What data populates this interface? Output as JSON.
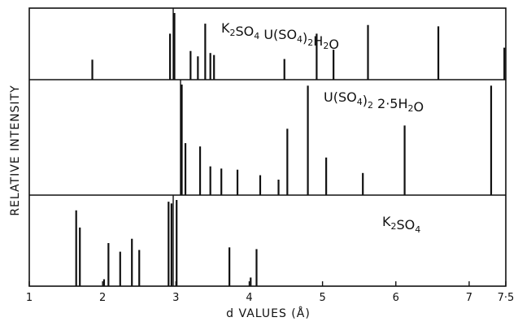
{
  "chart_data": {
    "type": "bar",
    "xlabel": "d VALUES (Å)",
    "ylabel": "RELATIVE INTENSITY",
    "xlim": [
      1,
      7.5
    ],
    "xticks": [
      {
        "value": 1,
        "label": "1"
      },
      {
        "value": 2,
        "label": "2"
      },
      {
        "value": 3,
        "label": "3"
      },
      {
        "value": 4,
        "label": "4"
      },
      {
        "value": 5,
        "label": "5"
      },
      {
        "value": 6,
        "label": "6"
      },
      {
        "value": 7,
        "label": "7"
      },
      {
        "value": 7.5,
        "label": "7·5"
      }
    ],
    "grid": false,
    "panels": [
      {
        "label_parts": [
          {
            "text": "K",
            "sub": false
          },
          {
            "text": "2",
            "sub": true
          },
          {
            "text": "SO",
            "sub": false
          },
          {
            "text": "4",
            "sub": true
          },
          {
            "text": " U(SO",
            "sub": false
          },
          {
            "text": "4",
            "sub": true
          },
          {
            "text": ")",
            "sub": false
          },
          {
            "text": "2",
            "sub": true
          },
          {
            "text": "H",
            "sub": false
          },
          {
            "text": "2",
            "sub": true
          },
          {
            "text": "O",
            "sub": false
          }
        ],
        "peaks": [
          {
            "d": 1.86,
            "intensity": 0.3
          },
          {
            "d": 2.92,
            "intensity": 0.69
          },
          {
            "d": 2.98,
            "intensity": 1.0
          },
          {
            "d": 3.2,
            "intensity": 0.43
          },
          {
            "d": 3.3,
            "intensity": 0.35
          },
          {
            "d": 3.4,
            "intensity": 0.84
          },
          {
            "d": 3.47,
            "intensity": 0.4
          },
          {
            "d": 3.52,
            "intensity": 0.37
          },
          {
            "d": 4.48,
            "intensity": 0.31
          },
          {
            "d": 4.92,
            "intensity": 0.69
          },
          {
            "d": 5.15,
            "intensity": 0.45
          },
          {
            "d": 5.62,
            "intensity": 0.82
          },
          {
            "d": 6.58,
            "intensity": 0.8
          },
          {
            "d": 7.48,
            "intensity": 0.48
          }
        ]
      },
      {
        "label_parts": [
          {
            "text": "U(SO",
            "sub": false
          },
          {
            "text": "4",
            "sub": true
          },
          {
            "text": ")",
            "sub": false
          },
          {
            "text": "2",
            "sub": true
          },
          {
            "text": " 2·5H",
            "sub": false
          },
          {
            "text": "2",
            "sub": true
          },
          {
            "text": "O",
            "sub": false
          }
        ],
        "peaks": [
          {
            "d": 3.08,
            "intensity": 1.0
          },
          {
            "d": 3.13,
            "intensity": 0.47
          },
          {
            "d": 3.33,
            "intensity": 0.44
          },
          {
            "d": 3.47,
            "intensity": 0.26
          },
          {
            "d": 3.62,
            "intensity": 0.24
          },
          {
            "d": 3.84,
            "intensity": 0.23
          },
          {
            "d": 4.15,
            "intensity": 0.18
          },
          {
            "d": 4.4,
            "intensity": 0.14
          },
          {
            "d": 4.52,
            "intensity": 0.6
          },
          {
            "d": 4.8,
            "intensity": 0.99
          },
          {
            "d": 5.05,
            "intensity": 0.34
          },
          {
            "d": 5.55,
            "intensity": 0.2
          },
          {
            "d": 6.12,
            "intensity": 0.63
          },
          {
            "d": 7.3,
            "intensity": 0.99
          }
        ]
      },
      {
        "label_parts": [
          {
            "text": "K",
            "sub": false
          },
          {
            "text": "2",
            "sub": true
          },
          {
            "text": "SO",
            "sub": false
          },
          {
            "text": "4",
            "sub": true
          }
        ],
        "peaks": [
          {
            "d": 1.64,
            "intensity": 0.88
          },
          {
            "d": 1.69,
            "intensity": 0.68
          },
          {
            "d": 2.02,
            "intensity": 0.08
          },
          {
            "d": 2.08,
            "intensity": 0.5
          },
          {
            "d": 2.24,
            "intensity": 0.4
          },
          {
            "d": 2.4,
            "intensity": 0.55
          },
          {
            "d": 2.5,
            "intensity": 0.42
          },
          {
            "d": 2.9,
            "intensity": 0.98
          },
          {
            "d": 2.94,
            "intensity": 0.96
          },
          {
            "d": 3.01,
            "intensity": 1.0
          },
          {
            "d": 3.73,
            "intensity": 0.45
          },
          {
            "d": 4.02,
            "intensity": 0.1
          },
          {
            "d": 4.1,
            "intensity": 0.43
          }
        ]
      }
    ]
  }
}
